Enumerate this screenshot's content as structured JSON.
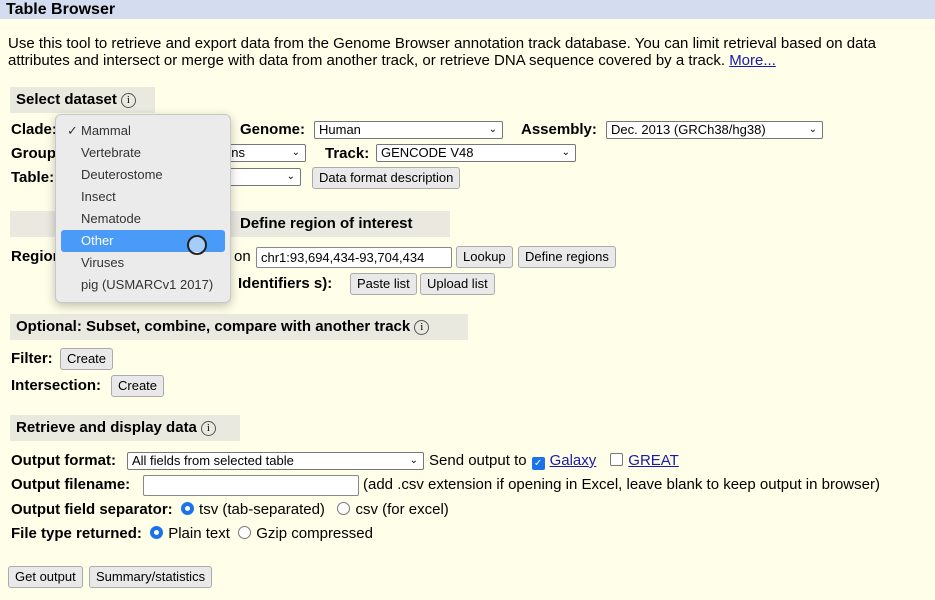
{
  "header": {
    "title": "Table Browser"
  },
  "intro": {
    "text": "Use this tool to retrieve and export data from the Genome Browser annotation track database. You can limit retrieval based on data attributes and intersect or merge with data from another track, or retrieve DNA sequence covered by a track.",
    "more": "More..."
  },
  "select_dataset": {
    "title": "Select dataset",
    "clade_label": "Clade:",
    "genome_label": "Genome:",
    "genome_value": "Human",
    "assembly_label": "Assembly:",
    "assembly_value": "Dec. 2013 (GRCh38/hg38)",
    "group_label": "Group:",
    "group_value": "ns",
    "track_label": "Track:",
    "track_value": "GENCODE V48",
    "table_label": "Table:",
    "data_format_button": "Data format description"
  },
  "clade_menu": {
    "items": [
      {
        "label": "Mammal",
        "checked": true
      },
      {
        "label": "Vertebrate"
      },
      {
        "label": "Deuterostome"
      },
      {
        "label": "Insect"
      },
      {
        "label": "Nematode"
      },
      {
        "label": "Other",
        "highlighted": true
      },
      {
        "label": "Viruses"
      },
      {
        "label": "pig (USMARCv1 2017)"
      }
    ]
  },
  "define_region": {
    "title": "Define region of interest",
    "region_label": "Region:",
    "region_suffix": "on",
    "position_value": "chr1:93,694,434-93,704,434",
    "lookup_button": "Lookup",
    "define_regions_button": "Define regions",
    "identifiers_label": "Identifiers",
    "identifiers_suffix": "s):",
    "paste_list_button": "Paste list",
    "upload_list_button": "Upload list"
  },
  "optional": {
    "title": "Optional: Subset, combine, compare with another track",
    "filter_label": "Filter:",
    "filter_button": "Create",
    "intersection_label": "Intersection:",
    "intersection_button": "Create"
  },
  "retrieve": {
    "title": "Retrieve and display data",
    "output_format_label": "Output format:",
    "output_format_value": "All fields from selected table",
    "send_output_label": "Send output to",
    "galaxy": "Galaxy",
    "galaxy_checked": true,
    "great": "GREAT",
    "great_checked": false,
    "filename_label": "Output filename:",
    "filename_value": "",
    "filename_hint": "(add .csv extension if opening in Excel, leave blank to keep output in browser)",
    "separator_label": "Output field separator:",
    "tsv": "tsv (tab-separated)",
    "csv": "csv (for excel)",
    "separator_selected": "tsv",
    "filetype_label": "File type returned:",
    "plain": "Plain text",
    "gzip": "Gzip compressed",
    "filetype_selected": "plain",
    "get_output_button": "Get output",
    "summary_button": "Summary/statistics"
  },
  "colors": {
    "page_bg": "#fffee8",
    "header_bg": "#d4ddf0",
    "section_bg": "#eae9e0",
    "highlight": "#4a9bf8",
    "link": "#1a1aa6"
  }
}
